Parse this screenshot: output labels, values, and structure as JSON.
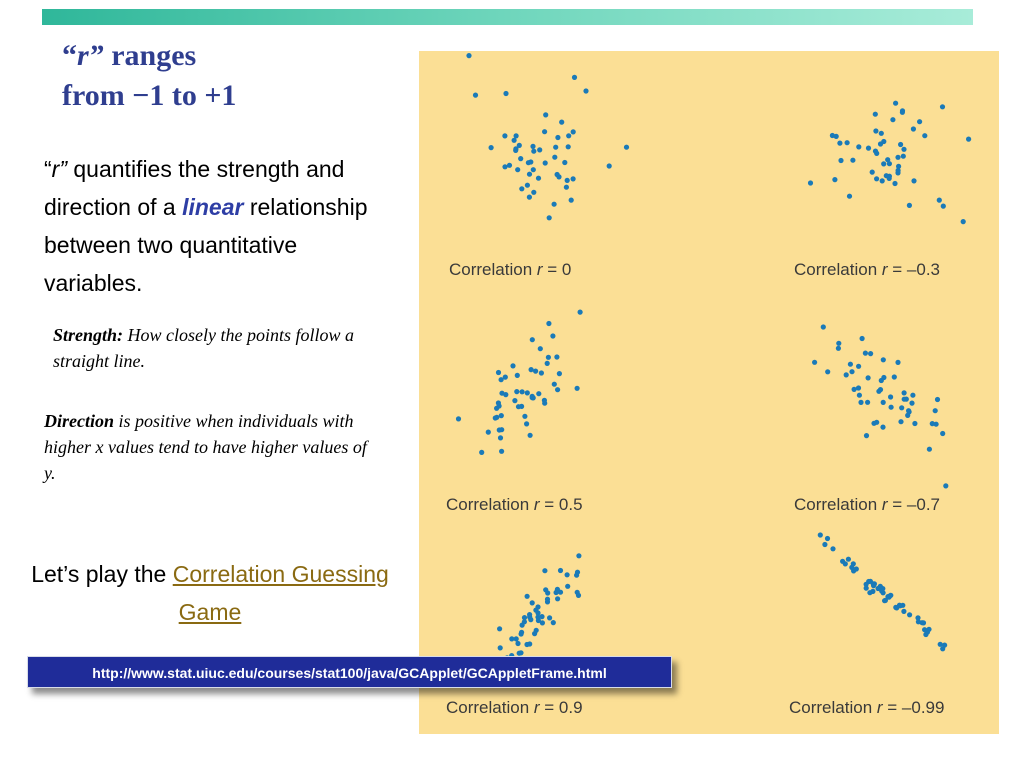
{
  "title": {
    "line1_open_quote": "“",
    "line1_r": "r”",
    "line1_rest": " ranges",
    "line2": "from −1 to +1"
  },
  "intro": {
    "open_quote": "“",
    "r": "r”",
    "text_a": " quantifies the strength and direction of a ",
    "linear": "linear",
    "text_b": " relationship between two quantitative variables."
  },
  "strength": {
    "label": "Strength:",
    "text": " How closely the points follow a straight line."
  },
  "direction": {
    "label": "Direction",
    "text": " is positive when individuals with higher x values tend to have higher values of  y."
  },
  "game": {
    "prefix": "Let’s play the ",
    "link": "Correlation Guessing Game"
  },
  "url": "http://www.stat.uiuc.edu/courses/stat100/java/GCApplet/GCAppletFrame.html",
  "colors": {
    "title": "#2f3e8f",
    "panel_bg": "#fbdf95",
    "dot": "#1a7ab8",
    "link": "#8a6a12",
    "url_bar": "#1f2c99"
  },
  "chart_data": [
    {
      "type": "scatter",
      "caption_prefix": "Correlation ",
      "caption_r": "r",
      "caption_value": " = 0",
      "r": 0
    },
    {
      "type": "scatter",
      "caption_prefix": "Correlation ",
      "caption_r": "r",
      "caption_value": " = –0.3",
      "r": -0.3
    },
    {
      "type": "scatter",
      "caption_prefix": "Correlation ",
      "caption_r": "r",
      "caption_value": " = 0.5",
      "r": 0.5
    },
    {
      "type": "scatter",
      "caption_prefix": "Correlation ",
      "caption_r": "r",
      "caption_value": " = –0.7",
      "r": -0.7
    },
    {
      "type": "scatter",
      "caption_prefix": "Correlation ",
      "caption_r": "r",
      "caption_value": " = 0.9",
      "r": 0.9
    },
    {
      "type": "scatter",
      "caption_prefix": "Correlation ",
      "caption_r": "r",
      "caption_value": " = –0.99",
      "r": -0.99
    }
  ]
}
